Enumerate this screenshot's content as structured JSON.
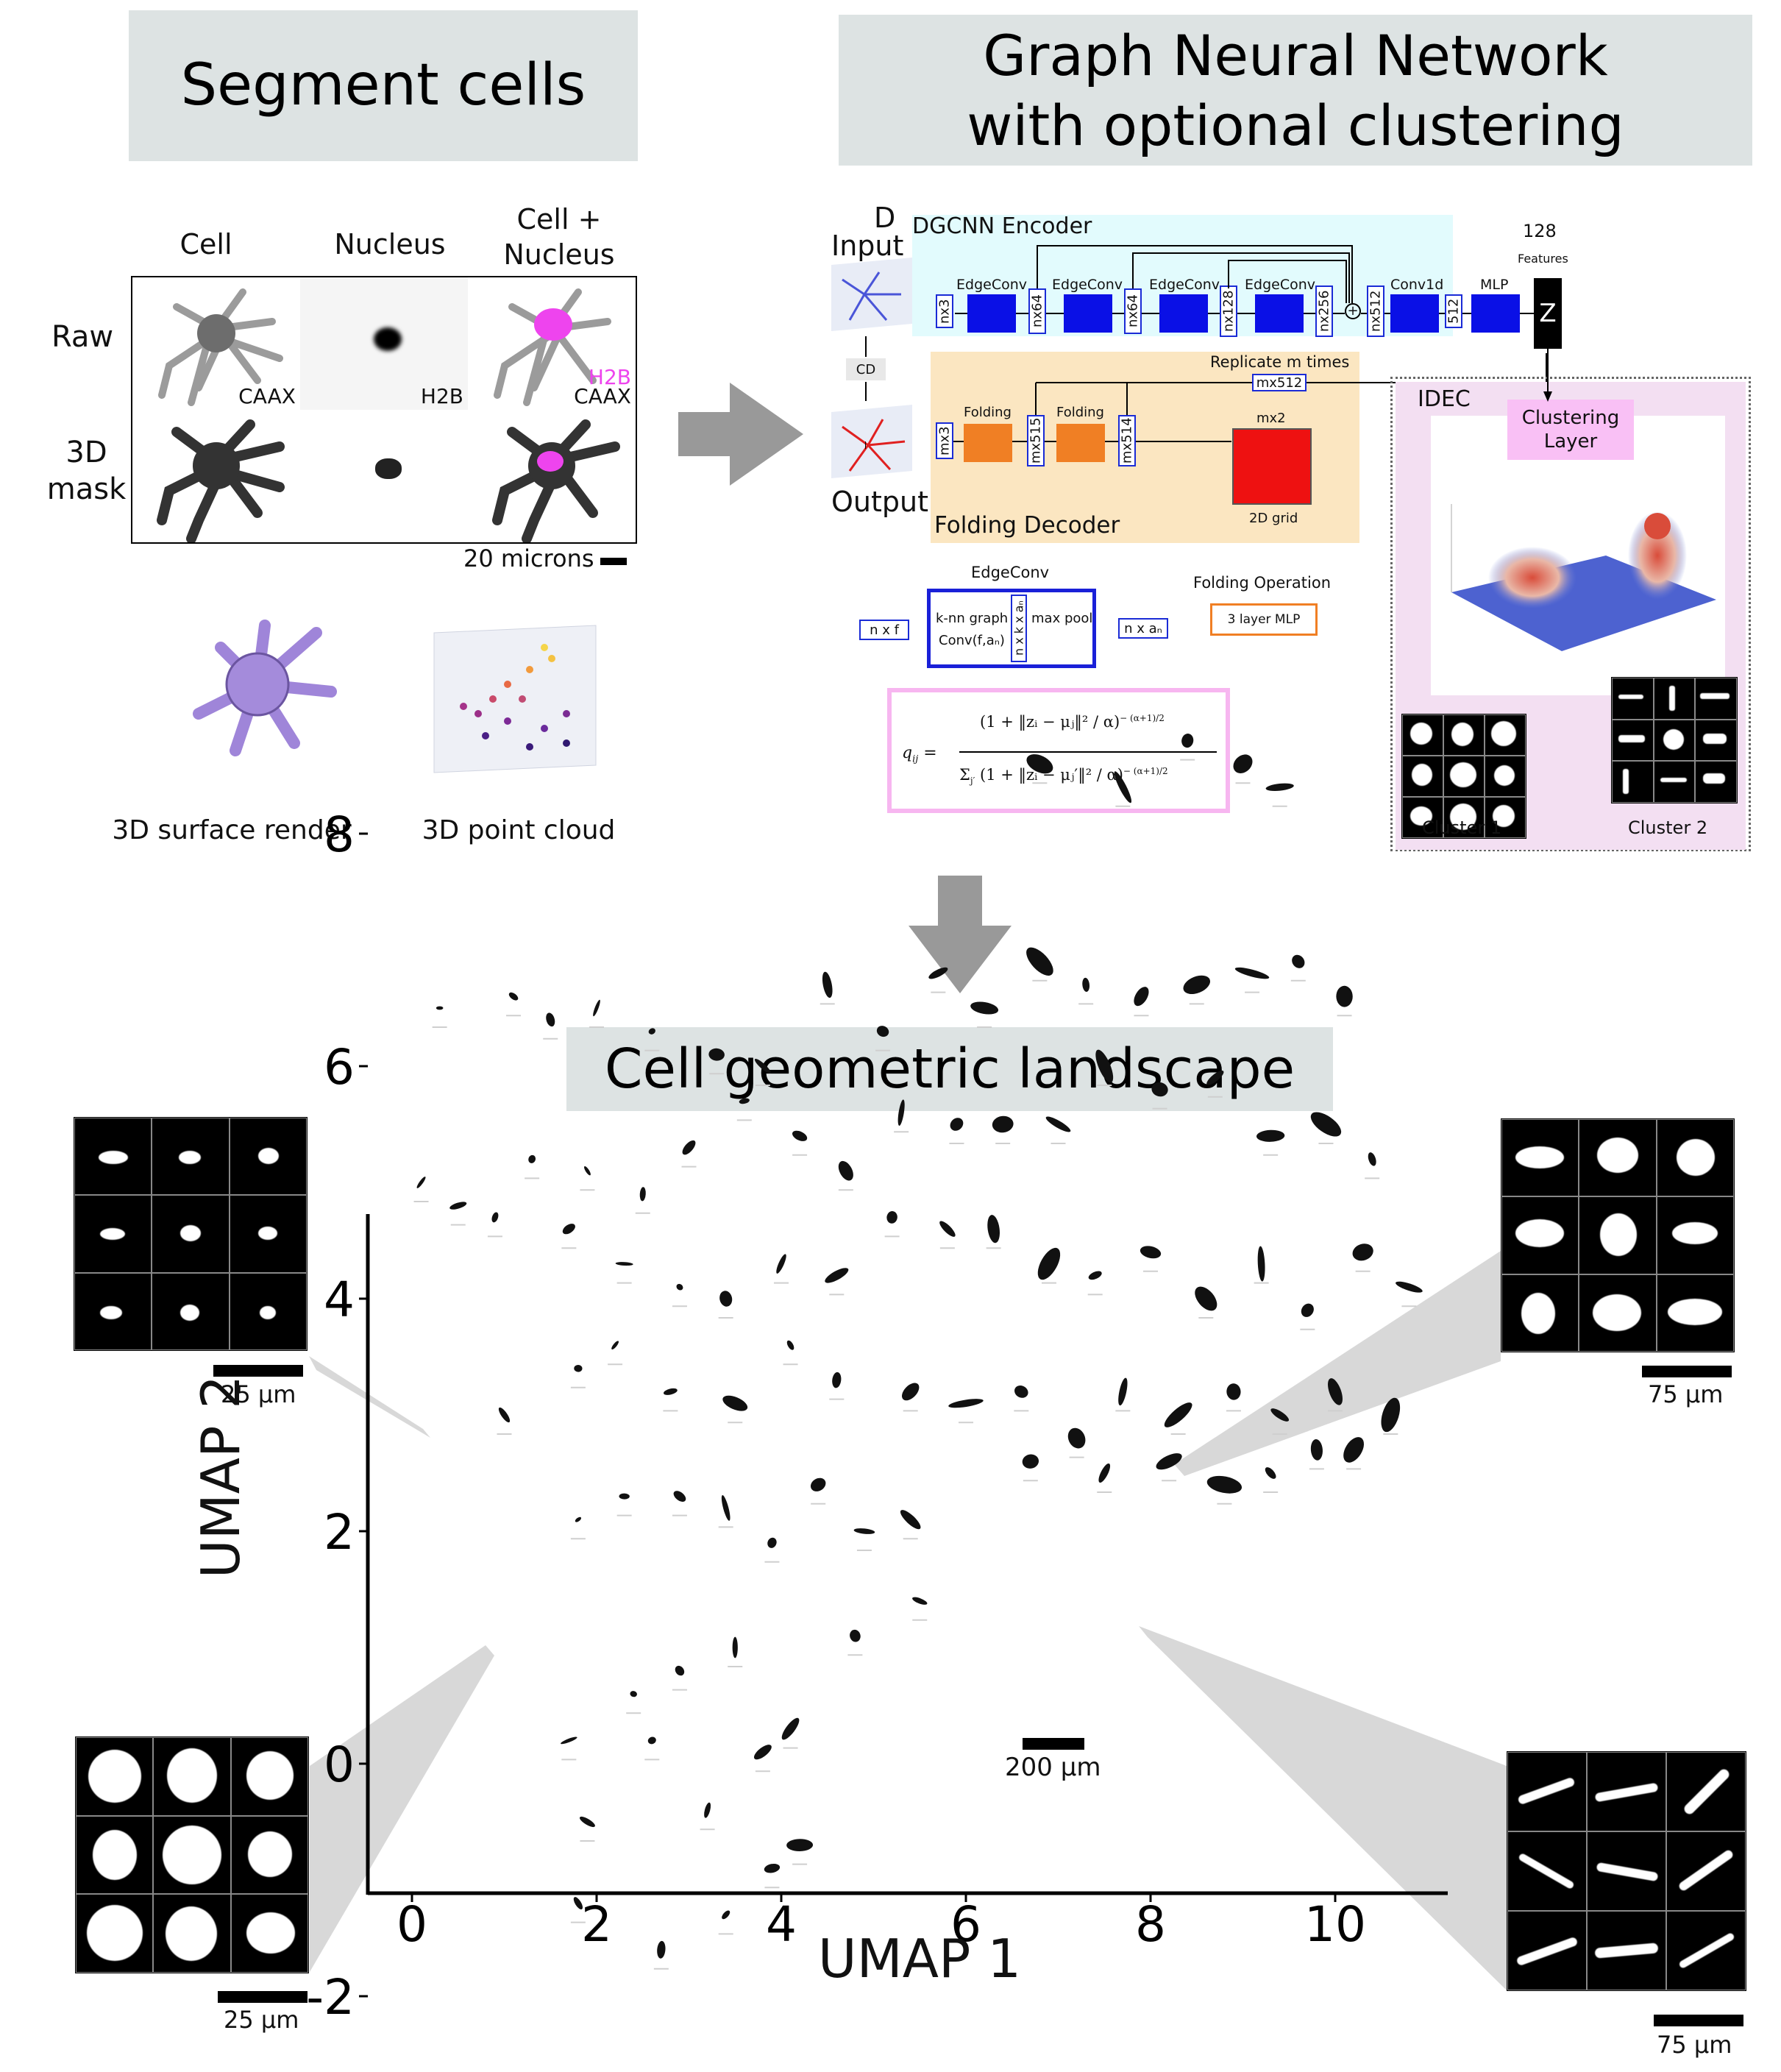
{
  "panels": {
    "segment": {
      "title": "Segment cells"
    },
    "gnn": {
      "title_line1": "Graph Neural Network",
      "title_line2": "with optional clustering"
    },
    "landscape": {
      "title": "Cell geometric landscape"
    }
  },
  "segment": {
    "columns": [
      "Cell",
      "Nucleus",
      "Cell +",
      "Nucleus"
    ],
    "rows": [
      "Raw",
      "3D",
      "mask"
    ],
    "raw_labels": {
      "cell": "CAAX",
      "nucleus": "H2B",
      "merge_top": "H2B",
      "merge_bottom": "CAAX"
    },
    "scale": "20 microns",
    "render_caption": "3D surface render",
    "cloud_caption": "3D point cloud"
  },
  "network": {
    "d_label": "D",
    "input_label": "Input",
    "output_label": "Output",
    "cd_label": "CD",
    "encoder_title": "DGCNN Encoder",
    "decoder_title": "Folding Decoder",
    "features_count": "128",
    "features_label": "Features",
    "z_label": "Z",
    "replicate_label": "Replicate m times",
    "grid_label": "2D grid",
    "grid_size": "mx2",
    "encoder_blocks": [
      "EdgeConv",
      "EdgeConv",
      "EdgeConv",
      "EdgeConv",
      "Conv1d",
      "MLP"
    ],
    "encoder_dims": [
      "nx3",
      "nx64",
      "nx64",
      "nx128",
      "nx256",
      "nx512",
      "512"
    ],
    "decoder_dims": [
      "mx512",
      "mx515",
      "mx514",
      "mx3"
    ],
    "folding_labels": [
      "Folding",
      "Folding"
    ],
    "edgeconv_legend": {
      "title": "EdgeConv",
      "input": "n x f",
      "knn": "k-nn graph",
      "conv": "Conv(f,aₙ)",
      "tensor": "n x k x aₙ",
      "pool": "max pool",
      "output": "n x aₙ"
    },
    "folding_legend": {
      "title": "Folding Operation",
      "mlp": "3 layer MLP"
    },
    "formula": {
      "lhs": "q",
      "lhs_sub": "ij",
      "numerator": "(1 + ‖zᵢ − μⱼ‖² / α)",
      "num_exp": "− (α+1)/2",
      "den_sum": "Σ",
      "den_sub": "j′",
      "denominator": "(1 + ‖zᵢ − μⱼ′‖² / α)",
      "den_exp": "− (α+1)/2"
    },
    "idec": {
      "title": "IDEC",
      "clustering_layer_1": "Clustering",
      "clustering_layer_2": "Layer",
      "cluster1": "Cluster 1",
      "cluster2": "Cluster 2"
    }
  },
  "landscape_plot": {
    "scalebar_label": "200 µm",
    "inset_scales": [
      "25 µm",
      "75 µm",
      "25 µm",
      "75 µm"
    ]
  },
  "chart_data": {
    "type": "scatter",
    "xlabel": "UMAP 1",
    "ylabel": "UMAP 2",
    "xlim": [
      -0.5,
      11.2
    ],
    "ylim": [
      -2.3,
      9.8
    ],
    "xticks": [
      0,
      2,
      4,
      6,
      8,
      10
    ],
    "yticks": [
      -2,
      0,
      2,
      4,
      6,
      8
    ],
    "x": [
      0.3,
      1.1,
      1.5,
      2.0,
      2.6,
      3.3,
      3.8,
      4.5,
      5.1,
      5.7,
      6.2,
      6.8,
      7.3,
      7.9,
      8.5,
      9.1,
      9.6,
      10.1,
      0.1,
      0.5,
      1.3,
      1.9,
      2.5,
      3.0,
      3.6,
      4.2,
      4.7,
      5.3,
      5.9,
      6.4,
      7.0,
      7.5,
      8.1,
      8.7,
      9.3,
      9.9,
      10.4,
      0.9,
      1.7,
      2.3,
      2.9,
      3.4,
      4.0,
      4.6,
      5.2,
      5.8,
      6.3,
      6.9,
      7.4,
      8.0,
      8.6,
      9.2,
      9.7,
      10.3,
      10.8,
      1.0,
      1.8,
      2.2,
      2.8,
      3.5,
      4.1,
      4.6,
      5.4,
      6.0,
      6.6,
      7.2,
      7.7,
      8.3,
      8.9,
      9.4,
      10.0,
      10.6,
      1.8,
      2.3,
      2.9,
      3.4,
      3.9,
      4.4,
      4.9,
      5.4,
      6.7,
      7.5,
      8.2,
      8.8,
      9.3,
      9.8,
      10.2,
      1.7,
      2.4,
      2.9,
      3.5,
      4.1,
      4.8,
      5.5,
      1.8,
      2.7,
      3.4,
      3.9,
      6.8,
      7.7,
      8.4,
      9.0,
      9.4,
      1.9,
      2.6,
      3.2,
      3.8,
      4.2
    ],
    "y": [
      6.5,
      6.6,
      6.4,
      6.5,
      6.3,
      6.1,
      6.0,
      6.7,
      6.3,
      6.8,
      6.5,
      6.9,
      6.7,
      6.6,
      6.7,
      6.8,
      6.9,
      6.6,
      5.0,
      4.8,
      5.2,
      5.1,
      4.9,
      5.3,
      5.7,
      5.4,
      5.1,
      5.6,
      5.5,
      5.5,
      5.5,
      6.0,
      5.8,
      5.9,
      5.4,
      5.5,
      5.2,
      4.7,
      4.6,
      4.3,
      4.1,
      4.0,
      4.3,
      4.2,
      4.7,
      4.6,
      4.6,
      4.3,
      4.2,
      4.4,
      4.0,
      4.3,
      3.9,
      4.4,
      4.1,
      3.0,
      3.4,
      3.6,
      3.2,
      3.1,
      3.6,
      3.3,
      3.2,
      3.1,
      3.2,
      2.8,
      3.2,
      3.0,
      3.2,
      3.0,
      3.2,
      3.0,
      2.1,
      2.3,
      2.3,
      2.2,
      1.9,
      2.4,
      2.0,
      2.1,
      2.6,
      2.5,
      2.6,
      2.4,
      2.5,
      2.7,
      2.7,
      0.2,
      0.6,
      0.8,
      1.0,
      0.3,
      1.1,
      1.4,
      -1.2,
      -1.6,
      -1.3,
      -0.9,
      8.6,
      8.4,
      8.8,
      8.6,
      8.4,
      -0.5,
      0.2,
      -0.4,
      0.1,
      -0.7
    ]
  },
  "colors": {
    "title_bg": "#dde3e3",
    "encoder_bg": "#e2fbfd",
    "decoder_bg": "#fbe6c1",
    "idec_bg": "#f3dff2",
    "block_blue": "#0a10e6",
    "block_orange": "#f07f24",
    "grid_red": "#ee1111",
    "formula_border": "#f7b6f0",
    "merge_magenta": "#ee44ee",
    "arrow_gray": "#999999"
  }
}
